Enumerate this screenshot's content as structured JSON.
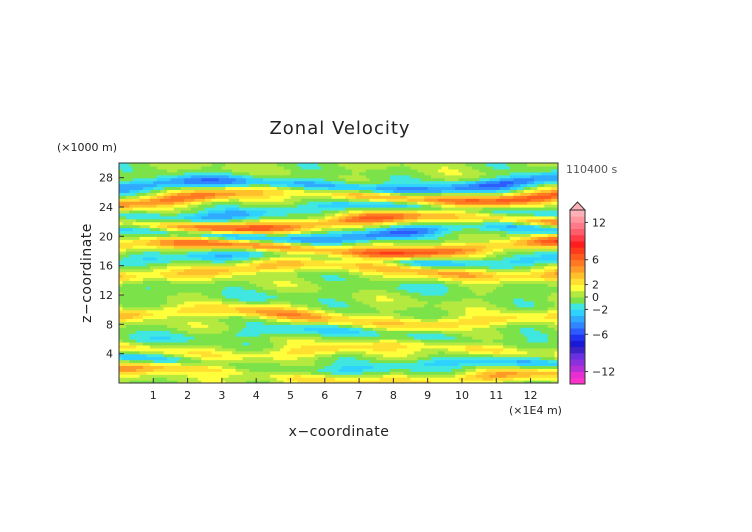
{
  "chart_data": {
    "type": "heatmap",
    "title": "Zonal Velocity",
    "xlabel": "x−coordinate",
    "ylabel": "z−coordinate",
    "x_unit": "(×1E4 m)",
    "y_unit": "(×1000 m)",
    "time_label": "110400 s",
    "xlim": [
      0,
      12.8
    ],
    "ylim": [
      0,
      30
    ],
    "x_ticks": [
      "1",
      "2",
      "3",
      "4",
      "5",
      "6",
      "7",
      "8",
      "9",
      "10",
      "11",
      "12"
    ],
    "y_ticks": [
      "4",
      "8",
      "12",
      "16",
      "20",
      "24",
      "28"
    ],
    "colorbar": {
      "max_arrow": true,
      "levels": [
        -14,
        -13,
        -12,
        -11,
        -10,
        -9,
        -8,
        -7,
        -6,
        -5,
        -4,
        -3,
        -2,
        -1,
        0,
        1,
        2,
        3,
        4,
        5,
        6,
        7,
        8,
        9,
        10,
        11,
        12,
        13,
        14
      ],
      "colors": [
        "#ff33cc",
        "#e62ed2",
        "#b42fd8",
        "#8c2fdc",
        "#6a2fe0",
        "#3d22c8",
        "#1a1ad6",
        "#1e32f0",
        "#2c5cff",
        "#2f86ff",
        "#30aaff",
        "#2fd2ff",
        "#40e6e0",
        "#7ce24a",
        "#b4ea40",
        "#ffff3c",
        "#ffe030",
        "#ffc02c",
        "#ff9a28",
        "#ff7822",
        "#ff5a1e",
        "#ff3a1c",
        "#ff1c1c",
        "#ff3c46",
        "#ff5c6c",
        "#ff7a88",
        "#ff96a0",
        "#ffb0b8"
      ],
      "tick_labels": [
        "−12",
        "−6",
        "−2",
        "0",
        "2",
        "6",
        "12"
      ],
      "tick_values": [
        -12,
        -6,
        -2,
        0,
        2,
        6,
        12
      ]
    },
    "dominant_bands": [
      {
        "z": 27.0,
        "value": -6
      },
      {
        "z": 25.5,
        "value": 7
      },
      {
        "z": 23.5,
        "value": -4
      },
      {
        "z": 22.0,
        "value": 8
      },
      {
        "z": 20.5,
        "value": -6
      },
      {
        "z": 18.5,
        "value": 8
      },
      {
        "z": 17.0,
        "value": -4
      },
      {
        "z": 15.5,
        "value": 5
      },
      {
        "z": 12.5,
        "value": -1
      },
      {
        "z": 9.0,
        "value": 4
      },
      {
        "z": 6.5,
        "value": -2
      },
      {
        "z": 4.5,
        "value": 3
      },
      {
        "z": 2.5,
        "value": -3
      },
      {
        "z": 1.0,
        "value": 4
      }
    ]
  }
}
